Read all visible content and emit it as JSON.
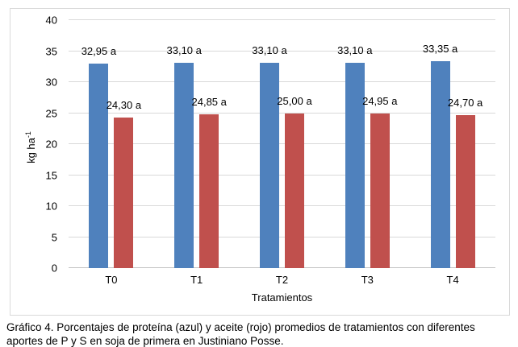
{
  "chart": {
    "ylabel_base": "kg ha",
    "ylabel_sup": "-1",
    "xlabel": "Tratamientos"
  },
  "caption": {
    "lines": [
      "Gráfico 4. Porcentajes de proteína (azul) y aceite (rojo) promedios de tratamientos con diferentes",
      "aportes de P y S en soja de primera en Justiniano Posse."
    ]
  },
  "chart_data": {
    "type": "bar",
    "categories": [
      "T0",
      "T1",
      "T2",
      "T3",
      "T4"
    ],
    "series": [
      {
        "name": "proteína (azul)",
        "color": "#4F81BD",
        "values": [
          32.95,
          33.1,
          33.1,
          33.1,
          33.35
        ],
        "labels": [
          "32,95 a",
          "33,10 a",
          "33,10 a",
          "33,10 a",
          "33,35 a"
        ]
      },
      {
        "name": "aceite (rojo)",
        "color": "#C0504D",
        "values": [
          24.3,
          24.85,
          25.0,
          24.95,
          24.7
        ],
        "labels": [
          "24,30 a",
          "24,85 a",
          "25,00 a",
          "24,95 a",
          "24,70 a"
        ]
      }
    ],
    "title": "",
    "xlabel": "Tratamientos",
    "ylabel": "kg ha-1",
    "ylim": [
      0,
      40
    ],
    "yticks": [
      0,
      5,
      10,
      15,
      20,
      25,
      30,
      35,
      40
    ],
    "grid": true,
    "legend": "none",
    "grid_color": "#d9d9d9",
    "frame_border_color": "#d9d9d9"
  }
}
